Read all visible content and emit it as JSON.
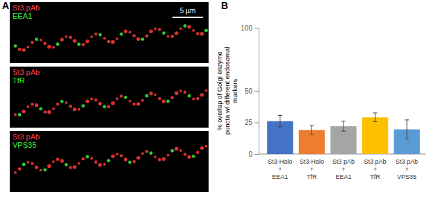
{
  "panel_labels": [
    "A",
    "B"
  ],
  "images": [
    {
      "channels": [
        "St3 pAb",
        "EEA1"
      ]
    },
    {
      "channels": [
        "St3 pAb",
        "TfR"
      ]
    },
    {
      "channels": [
        "St3 pAb",
        "VPS35"
      ]
    }
  ],
  "channel_colors": [
    "#ff3b3b",
    "#3cf03c"
  ],
  "scale_bar": "5 µm",
  "chart_data": {
    "type": "bar",
    "ylabel": [
      "% overlap of Golgi enzyme",
      "puncta w/ different endosomal",
      "markers"
    ],
    "categories": [
      "St3-Halo + EEA1",
      "St3-Halo + TfR",
      "St3 pAb + EEA1",
      "St3 pAb + TfR",
      "St3 pAb + VPS35"
    ],
    "values": [
      26,
      19,
      22,
      29,
      19.5
    ],
    "errors": [
      4.5,
      3.5,
      4,
      3.5,
      7.5
    ],
    "colors": [
      "#4472c4",
      "#ed7d31",
      "#a5a5a5",
      "#ffc000",
      "#5b9bd5"
    ],
    "ylim": [
      0,
      100
    ],
    "yticks": [
      0,
      25,
      50,
      100
    ]
  }
}
